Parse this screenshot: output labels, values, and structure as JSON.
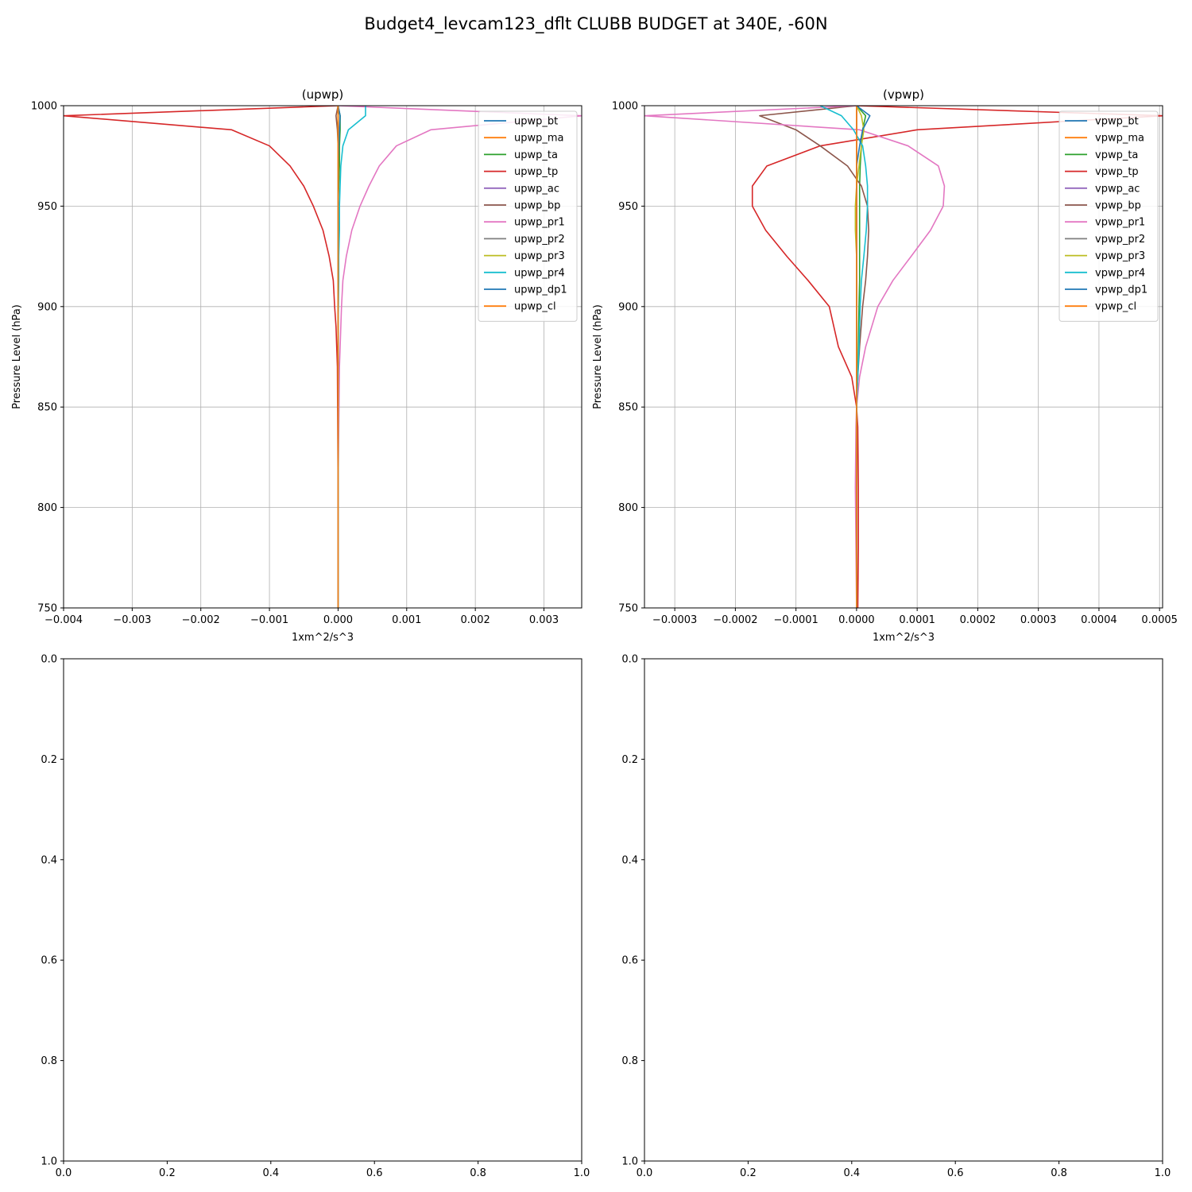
{
  "figure": {
    "title": "Budget4_levcam123_dflt CLUBB BUDGET at 340E, -60N"
  },
  "chart_data": [
    {
      "type": "line",
      "title": "(upwp)",
      "xlabel": "1xm^2/s^3",
      "ylabel": "Pressure Level (hPa)",
      "xlim": [
        -0.004,
        0.00355
      ],
      "ylim": [
        1000,
        750
      ],
      "y_inverted": true,
      "grid": true,
      "legend_position": "upper right",
      "x_ticks": [
        -0.004,
        -0.003,
        -0.002,
        -0.001,
        0.0,
        0.001,
        0.002,
        0.003
      ],
      "x_tick_labels": [
        "−0.004",
        "−0.003",
        "−0.002",
        "−0.001",
        "0.000",
        "0.001",
        "0.002",
        "0.003"
      ],
      "y_ticks": [
        750,
        800,
        850,
        900,
        950,
        1000
      ],
      "y_tick_labels": [
        "750",
        "800",
        "850",
        "900",
        "950",
        "1000"
      ],
      "levels": [
        750,
        780,
        810,
        840,
        870,
        880,
        890,
        900,
        913,
        925,
        938,
        950,
        960,
        970,
        980,
        988,
        995,
        1000
      ],
      "series": [
        {
          "name": "upwp_bt",
          "color": "#1f77b4",
          "values": [
            0,
            0,
            0,
            0,
            0,
            0,
            0,
            0,
            0,
            0,
            0,
            0,
            0,
            0,
            0,
            0,
            0,
            0
          ]
        },
        {
          "name": "upwp_ma",
          "color": "#ff7f0e",
          "values": [
            0,
            0,
            0,
            0,
            0,
            0,
            0,
            0,
            0,
            0,
            0,
            0,
            0,
            0,
            0,
            0,
            0,
            0
          ]
        },
        {
          "name": "upwp_ta",
          "color": "#2ca02c",
          "values": [
            0,
            0,
            0,
            0,
            0,
            0,
            0,
            0,
            0,
            0,
            0,
            0,
            1e-05,
            2e-05,
            2e-05,
            3e-05,
            3e-05,
            0
          ]
        },
        {
          "name": "upwp_tp",
          "color": "#d62728",
          "values": [
            0,
            0,
            0,
            -5e-06,
            -1e-05,
            -2e-05,
            -3e-05,
            -5e-05,
            -7e-05,
            -0.00013,
            -0.00022,
            -0.00036,
            -0.0005,
            -0.0007,
            -0.001,
            -0.00155,
            -0.004,
            0
          ]
        },
        {
          "name": "upwp_ac",
          "color": "#9467bd",
          "values": [
            0,
            0,
            0,
            0,
            0,
            0,
            0,
            0,
            0,
            0,
            0,
            0,
            0,
            0,
            0,
            0,
            0,
            0
          ]
        },
        {
          "name": "upwp_bp",
          "color": "#8c564b",
          "values": [
            0,
            0,
            0,
            0,
            0,
            0,
            0,
            0,
            0,
            0,
            0,
            0,
            0,
            0,
            0,
            -1e-05,
            -3e-05,
            0
          ]
        },
        {
          "name": "upwp_pr1",
          "color": "#e377c2",
          "values": [
            0,
            0,
            0,
            1e-05,
            2e-05,
            3e-05,
            4e-05,
            5e-05,
            7e-05,
            0.00012,
            0.0002,
            0.00032,
            0.00045,
            0.0006,
            0.00085,
            0.00135,
            0.00355,
            0
          ]
        },
        {
          "name": "upwp_pr2",
          "color": "#7f7f7f",
          "values": [
            0,
            0,
            0,
            0,
            0,
            0,
            0,
            0,
            0,
            0,
            0,
            0,
            0,
            0,
            0,
            0,
            0,
            0
          ]
        },
        {
          "name": "upwp_pr3",
          "color": "#bcbd22",
          "values": [
            0,
            0,
            0,
            0,
            0,
            0,
            0,
            0,
            0,
            0,
            0,
            0,
            0,
            0,
            0,
            0,
            0,
            0
          ]
        },
        {
          "name": "upwp_pr4",
          "color": "#17becf",
          "values": [
            0,
            0,
            0,
            0,
            0,
            0,
            0,
            5e-06,
            1e-05,
            1e-05,
            2e-05,
            2e-05,
            3e-05,
            4e-05,
            7e-05,
            0.00015,
            0.0004,
            0.0004
          ]
        },
        {
          "name": "upwp_dp1",
          "color": "#1f77b4",
          "values": [
            0,
            0,
            0,
            0,
            0,
            0,
            0,
            0,
            0,
            0,
            0,
            0,
            0,
            0,
            1e-05,
            2e-05,
            3e-05,
            0
          ]
        },
        {
          "name": "upwp_cl",
          "color": "#ff7f0e",
          "values": [
            0,
            0,
            0,
            0,
            0,
            0,
            0,
            0,
            0,
            0,
            0,
            0,
            0,
            0,
            0,
            0,
            0,
            0
          ]
        }
      ]
    },
    {
      "type": "line",
      "title": "(vpwp)",
      "xlabel": "1xm^2/s^3",
      "ylabel": "Pressure Level (hPa)",
      "xlim": [
        -0.00035,
        0.000505
      ],
      "ylim": [
        1000,
        750
      ],
      "y_inverted": true,
      "grid": true,
      "legend_position": "upper right",
      "x_ticks": [
        -0.0003,
        -0.0002,
        -0.0001,
        0.0,
        0.0001,
        0.0002,
        0.0003,
        0.0004,
        0.0005
      ],
      "x_tick_labels": [
        "−0.0003",
        "−0.0002",
        "−0.0001",
        "0.0000",
        "0.0001",
        "0.0002",
        "0.0003",
        "0.0004",
        "0.0005"
      ],
      "y_ticks": [
        750,
        800,
        850,
        900,
        950,
        1000
      ],
      "y_tick_labels": [
        "750",
        "800",
        "850",
        "900",
        "950",
        "1000"
      ],
      "levels": [
        750,
        780,
        810,
        840,
        850,
        865,
        880,
        900,
        913,
        925,
        938,
        950,
        960,
        970,
        980,
        988,
        995,
        1000
      ],
      "series": [
        {
          "name": "vpwp_bt",
          "color": "#1f77b4",
          "values": [
            0,
            0,
            0,
            0,
            0,
            0,
            0,
            0,
            0,
            0,
            0,
            0,
            0,
            0,
            0,
            0,
            0,
            0
          ]
        },
        {
          "name": "vpwp_ma",
          "color": "#ff7f0e",
          "values": [
            0,
            0,
            0,
            0,
            0,
            0,
            0,
            0,
            0,
            0,
            0,
            0,
            0,
            0,
            0,
            0,
            0,
            0
          ]
        },
        {
          "name": "vpwp_ta",
          "color": "#2ca02c",
          "values": [
            0,
            0,
            0,
            0,
            0,
            2e-06,
            3e-06,
            4e-06,
            5e-06,
            5e-06,
            5e-06,
            5e-06,
            5e-06,
            6e-06,
            8e-06,
            1e-05,
            1.5e-05,
            0
          ]
        },
        {
          "name": "vpwp_tp",
          "color": "#d62728",
          "values": [
            2e-06,
            3e-06,
            3e-06,
            2e-06,
            0,
            -8e-06,
            -3e-05,
            -4.5e-05,
            -8e-05,
            -0.000115,
            -0.00015,
            -0.000172,
            -0.000172,
            -0.000148,
            -6e-05,
            0.0001,
            0.000505,
            0
          ]
        },
        {
          "name": "vpwp_ac",
          "color": "#9467bd",
          "values": [
            0,
            0,
            0,
            0,
            0,
            0,
            0,
            0,
            0,
            0,
            0,
            0,
            0,
            0,
            0,
            0,
            0,
            0
          ]
        },
        {
          "name": "vpwp_bp",
          "color": "#8c564b",
          "values": [
            0,
            0,
            0,
            0,
            0,
            2e-06,
            5e-06,
            1e-05,
            1.5e-05,
            1.8e-05,
            2e-05,
            1.8e-05,
            8e-06,
            -1.5e-05,
            -6e-05,
            -0.0001,
            -0.00016,
            0
          ]
        },
        {
          "name": "vpwp_pr1",
          "color": "#e377c2",
          "values": [
            0,
            -1e-06,
            -2e-06,
            -1e-06,
            0,
            5e-06,
            1.5e-05,
            3.5e-05,
            6e-05,
            9e-05,
            0.000122,
            0.000143,
            0.000145,
            0.000135,
            8.5e-05,
            5e-06,
            -0.00035,
            0
          ]
        },
        {
          "name": "vpwp_pr2",
          "color": "#7f7f7f",
          "values": [
            0,
            0,
            0,
            0,
            0,
            0,
            0,
            0,
            0,
            0,
            0,
            0,
            0,
            0,
            0,
            0,
            0,
            0
          ]
        },
        {
          "name": "vpwp_pr3",
          "color": "#bcbd22",
          "values": [
            0,
            0,
            0,
            0,
            0,
            0,
            0,
            0,
            0,
            0,
            -2e-06,
            -2e-06,
            0,
            4e-06,
            8e-06,
            1.2e-05,
            8e-06,
            0
          ]
        },
        {
          "name": "vpwp_pr4",
          "color": "#17becf",
          "values": [
            0,
            0,
            0,
            0,
            0,
            2e-06,
            4e-06,
            6e-06,
            8e-06,
            1.2e-05,
            1.6e-05,
            1.8e-05,
            1.8e-05,
            1.5e-05,
            1e-05,
            -5e-06,
            -2.5e-05,
            -6e-05
          ]
        },
        {
          "name": "vpwp_dp1",
          "color": "#1f77b4",
          "values": [
            0,
            0,
            0,
            0,
            0,
            0,
            0,
            0,
            0,
            0,
            0,
            0,
            0,
            0,
            5e-06,
            1e-05,
            2.2e-05,
            0
          ]
        },
        {
          "name": "vpwp_cl",
          "color": "#ff7f0e",
          "values": [
            0,
            0,
            0,
            0,
            0,
            0,
            0,
            0,
            0,
            0,
            0,
            0,
            0,
            0,
            0,
            0,
            0,
            0
          ]
        }
      ]
    },
    {
      "type": "line",
      "title": "",
      "xlim": [
        0,
        1
      ],
      "ylim": [
        0,
        1
      ],
      "grid": false,
      "x_ticks": [
        0,
        0.2,
        0.4,
        0.6,
        0.8,
        1.0
      ],
      "x_tick_labels": [
        "0.0",
        "0.2",
        "0.4",
        "0.6",
        "0.8",
        "1.0"
      ],
      "y_ticks": [
        0,
        0.2,
        0.4,
        0.6,
        0.8,
        1.0
      ],
      "y_tick_labels": [
        "0.0",
        "0.2",
        "0.4",
        "0.6",
        "0.8",
        "1.0"
      ],
      "series": []
    },
    {
      "type": "line",
      "title": "",
      "xlim": [
        0,
        1
      ],
      "ylim": [
        0,
        1
      ],
      "grid": false,
      "x_ticks": [
        0,
        0.2,
        0.4,
        0.6,
        0.8,
        1.0
      ],
      "x_tick_labels": [
        "0.0",
        "0.2",
        "0.4",
        "0.6",
        "0.8",
        "1.0"
      ],
      "y_ticks": [
        0,
        0.2,
        0.4,
        0.6,
        0.8,
        1.0
      ],
      "y_tick_labels": [
        "0.0",
        "0.2",
        "0.4",
        "0.6",
        "0.8",
        "1.0"
      ],
      "series": []
    }
  ]
}
